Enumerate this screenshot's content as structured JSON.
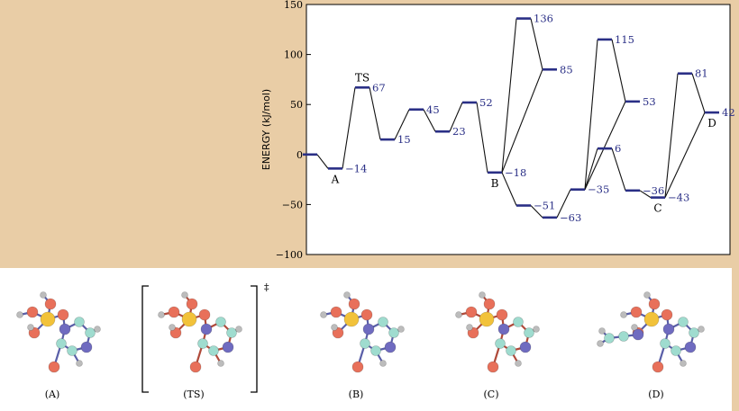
{
  "chart_data": {
    "type": "line",
    "ylabel": "ENERGY (kJ/mol)",
    "ylim": [
      -100,
      150
    ],
    "yticks": [
      150,
      100,
      50,
      0,
      -50,
      -100
    ],
    "levels": [
      {
        "id": "L0",
        "x": 0,
        "value": 0,
        "label": "",
        "side": "none"
      },
      {
        "id": "L1",
        "x": 1,
        "value": -14,
        "label": "−14",
        "side": "right"
      },
      {
        "id": "L2",
        "x": 2,
        "value": 67,
        "label": "67",
        "side": "right"
      },
      {
        "id": "L3",
        "x": 3,
        "value": 15,
        "label": "15",
        "side": "right"
      },
      {
        "id": "L4",
        "x": 4,
        "value": 45,
        "label": "45",
        "side": "right"
      },
      {
        "id": "L5",
        "x": 5,
        "value": 23,
        "label": "23",
        "side": "right"
      },
      {
        "id": "L6",
        "x": 6,
        "value": 52,
        "label": "52",
        "side": "right"
      },
      {
        "id": "L7",
        "x": 7,
        "value": -18,
        "label": "−18",
        "side": "right"
      },
      {
        "id": "L8",
        "x": 8,
        "value": 136,
        "label": "136",
        "side": "right"
      },
      {
        "id": "L9",
        "x": 9,
        "value": 85,
        "label": "85",
        "side": "right"
      },
      {
        "id": "L10",
        "x": 8,
        "value": -51,
        "label": "−51",
        "side": "right"
      },
      {
        "id": "L11",
        "x": 9,
        "value": -63,
        "label": "−63",
        "side": "right"
      },
      {
        "id": "L12",
        "x": 10,
        "value": -35,
        "label": "−35",
        "side": "right"
      },
      {
        "id": "L13",
        "x": 11,
        "value": 115,
        "label": "115",
        "side": "right"
      },
      {
        "id": "L14",
        "x": 12,
        "value": 53,
        "label": "53",
        "side": "right"
      },
      {
        "id": "L15",
        "x": 11,
        "value": 6,
        "label": "6",
        "side": "right"
      },
      {
        "id": "L16",
        "x": 12,
        "value": -36,
        "label": "−36",
        "side": "right"
      },
      {
        "id": "L17",
        "x": 13,
        "value": -43,
        "label": "−43",
        "side": "right"
      },
      {
        "id": "L18",
        "x": 14,
        "value": 81,
        "label": "81",
        "side": "right"
      },
      {
        "id": "L19",
        "x": 15,
        "value": 42,
        "label": "42",
        "side": "right"
      }
    ],
    "connections": [
      [
        "L0",
        "L1"
      ],
      [
        "L1",
        "L2"
      ],
      [
        "L2",
        "L3"
      ],
      [
        "L3",
        "L4"
      ],
      [
        "L4",
        "L5"
      ],
      [
        "L5",
        "L6"
      ],
      [
        "L6",
        "L7"
      ],
      [
        "L7",
        "L8"
      ],
      [
        "L8",
        "L9"
      ],
      [
        "L7",
        "L9"
      ],
      [
        "L7",
        "L10"
      ],
      [
        "L10",
        "L11"
      ],
      [
        "L11",
        "L12"
      ],
      [
        "L12",
        "L13"
      ],
      [
        "L13",
        "L14"
      ],
      [
        "L12",
        "L14"
      ],
      [
        "L12",
        "L15"
      ],
      [
        "L15",
        "L16"
      ],
      [
        "L16",
        "L17"
      ],
      [
        "L17",
        "L18"
      ],
      [
        "L18",
        "L19"
      ],
      [
        "L17",
        "L19"
      ]
    ],
    "state_labels": [
      {
        "text": "TS",
        "level": "L2",
        "pos": "above"
      },
      {
        "text": "A",
        "level": "L1",
        "pos": "below"
      },
      {
        "text": "B",
        "level": "L7",
        "pos": "below"
      },
      {
        "text": "C",
        "level": "L17",
        "pos": "below"
      },
      {
        "text": "D",
        "level": "L19",
        "pos": "below"
      }
    ]
  },
  "molecules": [
    {
      "label": "(A)"
    },
    {
      "label": "(TS)",
      "bracketed": true,
      "mark": "‡"
    },
    {
      "label": "(B)"
    },
    {
      "label": "(C)"
    },
    {
      "label": "(D)"
    }
  ],
  "colors": {
    "background_tan": "#e9cda6",
    "level_color": "#2a2f86",
    "label_color": "#2a2f86",
    "line_color": "#111111",
    "oxygen": "#e8705a",
    "nitrogen": "#6f6bc0",
    "carbon": "#9fdccf",
    "hydrogen": "#bcbcbc",
    "phosphorus": "#f2c23a"
  }
}
